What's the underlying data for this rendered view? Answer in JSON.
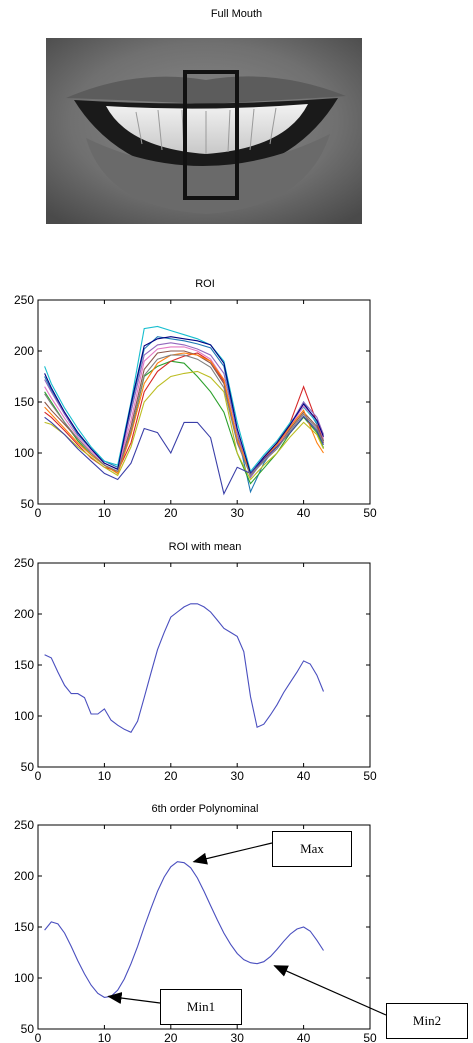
{
  "photo": {
    "title": "Full Mouth"
  },
  "colors": {
    "line": "#4a4fbf",
    "axis": "#000000",
    "roi_box": "#111111"
  },
  "chart_data": [
    {
      "type": "line",
      "title": "ROI",
      "xlim": [
        0,
        50
      ],
      "ylim": [
        50,
        250
      ],
      "xticks": [
        0,
        10,
        20,
        30,
        40,
        50
      ],
      "yticks": [
        50,
        100,
        150,
        200,
        250
      ],
      "grid": false,
      "series": [
        {
          "color": "#1f77b4",
          "x": [
            1,
            2,
            4,
            6,
            8,
            10,
            12,
            14,
            16,
            18,
            20,
            22,
            24,
            26,
            28,
            30,
            32,
            34,
            36,
            38,
            40,
            42,
            43
          ],
          "y": [
            175,
            162,
            138,
            118,
            104,
            92,
            86,
            145,
            202,
            214,
            212,
            210,
            207,
            203,
            185,
            120,
            62,
            90,
            108,
            128,
            150,
            128,
            112
          ]
        },
        {
          "color": "#2ca02c",
          "x": [
            1,
            2,
            4,
            6,
            8,
            10,
            12,
            14,
            16,
            18,
            20,
            22,
            24,
            26,
            28,
            30,
            32,
            34,
            36,
            38,
            40,
            42,
            43
          ],
          "y": [
            160,
            150,
            130,
            112,
            98,
            88,
            80,
            120,
            175,
            185,
            190,
            188,
            175,
            160,
            140,
            100,
            70,
            85,
            100,
            120,
            135,
            120,
            105
          ]
        },
        {
          "color": "#d62728",
          "x": [
            1,
            2,
            4,
            6,
            8,
            10,
            12,
            14,
            16,
            18,
            20,
            22,
            24,
            26,
            28,
            30,
            32,
            34,
            36,
            38,
            40,
            42,
            43
          ],
          "y": [
            140,
            135,
            122,
            108,
            95,
            86,
            82,
            110,
            160,
            180,
            190,
            195,
            198,
            190,
            170,
            110,
            80,
            95,
            110,
            130,
            165,
            130,
            110
          ]
        },
        {
          "color": "#17becf",
          "x": [
            1,
            2,
            4,
            6,
            8,
            10,
            12,
            14,
            16,
            18,
            20,
            22,
            24,
            26,
            28,
            30,
            32,
            34,
            36,
            38,
            40,
            42,
            43
          ],
          "y": [
            185,
            168,
            144,
            124,
            106,
            92,
            88,
            150,
            222,
            224,
            220,
            216,
            212,
            206,
            190,
            130,
            82,
            98,
            112,
            130,
            145,
            130,
            118
          ]
        },
        {
          "color": "#9467bd",
          "x": [
            1,
            2,
            4,
            6,
            8,
            10,
            12,
            14,
            16,
            18,
            20,
            22,
            24,
            26,
            28,
            30,
            32,
            34,
            36,
            38,
            40,
            42,
            43
          ],
          "y": [
            172,
            160,
            138,
            120,
            104,
            90,
            84,
            140,
            196,
            206,
            208,
            206,
            202,
            196,
            178,
            120,
            76,
            94,
            108,
            128,
            150,
            135,
            118
          ]
        },
        {
          "color": "#8c564b",
          "x": [
            1,
            2,
            4,
            6,
            8,
            10,
            12,
            14,
            16,
            18,
            20,
            22,
            24,
            26,
            28,
            30,
            32,
            34,
            36,
            38,
            40,
            42,
            43
          ],
          "y": [
            150,
            142,
            128,
            114,
            100,
            88,
            82,
            126,
            182,
            198,
            200,
            200,
            196,
            188,
            168,
            112,
            78,
            92,
            106,
            124,
            140,
            126,
            112
          ]
        },
        {
          "color": "#e377c2",
          "x": [
            1,
            2,
            4,
            6,
            8,
            10,
            12,
            14,
            16,
            18,
            20,
            22,
            24,
            26,
            28,
            30,
            32,
            34,
            36,
            38,
            40,
            42,
            43
          ],
          "y": [
            165,
            154,
            134,
            116,
            102,
            90,
            84,
            132,
            190,
            202,
            204,
            204,
            200,
            192,
            172,
            114,
            78,
            92,
            106,
            126,
            146,
            132,
            114
          ]
        },
        {
          "color": "#bcbd22",
          "x": [
            1,
            2,
            4,
            6,
            8,
            10,
            12,
            14,
            16,
            18,
            20,
            22,
            24,
            26,
            28,
            30,
            32,
            34,
            36,
            38,
            40,
            42,
            43
          ],
          "y": [
            130,
            128,
            118,
            106,
            96,
            86,
            78,
            106,
            150,
            165,
            175,
            178,
            180,
            174,
            160,
            100,
            74,
            88,
            100,
            116,
            130,
            118,
            104
          ]
        },
        {
          "color": "#ff7f0e",
          "x": [
            1,
            2,
            4,
            6,
            8,
            10,
            12,
            14,
            16,
            18,
            20,
            22,
            24,
            26,
            28,
            30,
            32,
            34,
            36,
            38,
            40,
            42,
            43
          ],
          "y": [
            145,
            138,
            124,
            110,
            98,
            88,
            80,
            118,
            168,
            188,
            196,
            198,
            196,
            190,
            172,
            114,
            80,
            94,
            108,
            126,
            142,
            110,
            100
          ]
        },
        {
          "color": "#000080",
          "x": [
            1,
            2,
            4,
            6,
            8,
            10,
            12,
            14,
            16,
            18,
            20,
            22,
            24,
            26,
            28,
            30,
            32,
            34,
            36,
            38,
            40,
            42,
            43
          ],
          "y": [
            178,
            164,
            140,
            120,
            104,
            90,
            84,
            148,
            205,
            212,
            214,
            212,
            210,
            206,
            188,
            124,
            80,
            96,
            110,
            128,
            148,
            132,
            116
          ]
        },
        {
          "color": "#3a3fa8",
          "x": [
            1,
            2,
            4,
            6,
            8,
            10,
            12,
            14,
            16,
            18,
            20,
            22,
            24,
            26,
            28,
            30,
            32,
            34,
            36,
            38,
            40,
            42,
            43
          ],
          "y": [
            135,
            130,
            118,
            104,
            92,
            80,
            74,
            90,
            124,
            120,
            100,
            130,
            130,
            115,
            60,
            86,
            80,
            94,
            106,
            120,
            136,
            122,
            108
          ]
        },
        {
          "color": "#7f7f7f",
          "x": [
            1,
            2,
            4,
            6,
            8,
            10,
            12,
            14,
            16,
            18,
            20,
            22,
            24,
            26,
            28,
            30,
            32,
            34,
            36,
            38,
            40,
            42,
            43
          ],
          "y": [
            158,
            148,
            130,
            114,
            100,
            88,
            82,
            122,
            176,
            192,
            196,
            196,
            192,
            184,
            164,
            110,
            78,
            92,
            104,
            122,
            138,
            124,
            110
          ]
        }
      ]
    },
    {
      "type": "line",
      "title": "ROI with mean",
      "xlim": [
        0,
        50
      ],
      "ylim": [
        50,
        250
      ],
      "xticks": [
        0,
        10,
        20,
        30,
        40,
        50
      ],
      "yticks": [
        50,
        100,
        150,
        200,
        250
      ],
      "grid": false,
      "series": [
        {
          "color": "#4a4fbf",
          "x": [
            1,
            2,
            3,
            4,
            5,
            6,
            7,
            8,
            9,
            10,
            11,
            12,
            13,
            14,
            15,
            16,
            17,
            18,
            19,
            20,
            21,
            22,
            23,
            24,
            25,
            26,
            27,
            28,
            29,
            30,
            31,
            32,
            33,
            34,
            35,
            36,
            37,
            38,
            39,
            40,
            41,
            42,
            43
          ],
          "y": [
            160,
            157,
            143,
            130,
            122,
            122,
            118,
            102,
            102,
            107,
            96,
            91,
            87,
            84,
            95,
            118,
            142,
            165,
            182,
            197,
            202,
            207,
            210,
            210,
            207,
            202,
            194,
            186,
            182,
            178,
            163,
            119,
            89,
            92,
            101,
            111,
            123,
            133,
            143,
            154,
            151,
            140,
            124
          ]
        }
      ]
    },
    {
      "type": "line",
      "title": "6th order Polynominal",
      "xlim": [
        0,
        50
      ],
      "ylim": [
        50,
        250
      ],
      "xticks": [
        0,
        10,
        20,
        30,
        40,
        50
      ],
      "yticks": [
        50,
        100,
        150,
        200,
        250
      ],
      "grid": false,
      "series": [
        {
          "color": "#4a4fbf",
          "x": [
            1,
            2,
            3,
            4,
            5,
            6,
            7,
            8,
            9,
            10,
            11,
            12,
            13,
            14,
            15,
            16,
            17,
            18,
            19,
            20,
            21,
            22,
            23,
            24,
            25,
            26,
            27,
            28,
            29,
            30,
            31,
            32,
            33,
            34,
            35,
            36,
            37,
            38,
            39,
            40,
            41,
            42,
            43
          ],
          "y": [
            147,
            155,
            153,
            144,
            131,
            117,
            104,
            93,
            85,
            81,
            82,
            88,
            99,
            114,
            131,
            150,
            168,
            185,
            199,
            209,
            214,
            213,
            208,
            198,
            185,
            171,
            157,
            144,
            133,
            124,
            118,
            115,
            114,
            116,
            121,
            128,
            136,
            143,
            148,
            150,
            146,
            137,
            127
          ]
        }
      ],
      "annotations": [
        {
          "text": "Max",
          "x": 23,
          "y": 213
        },
        {
          "text": "Min1",
          "x": 10,
          "y": 82
        },
        {
          "text": "Min2",
          "x": 35,
          "y": 114
        }
      ]
    }
  ]
}
